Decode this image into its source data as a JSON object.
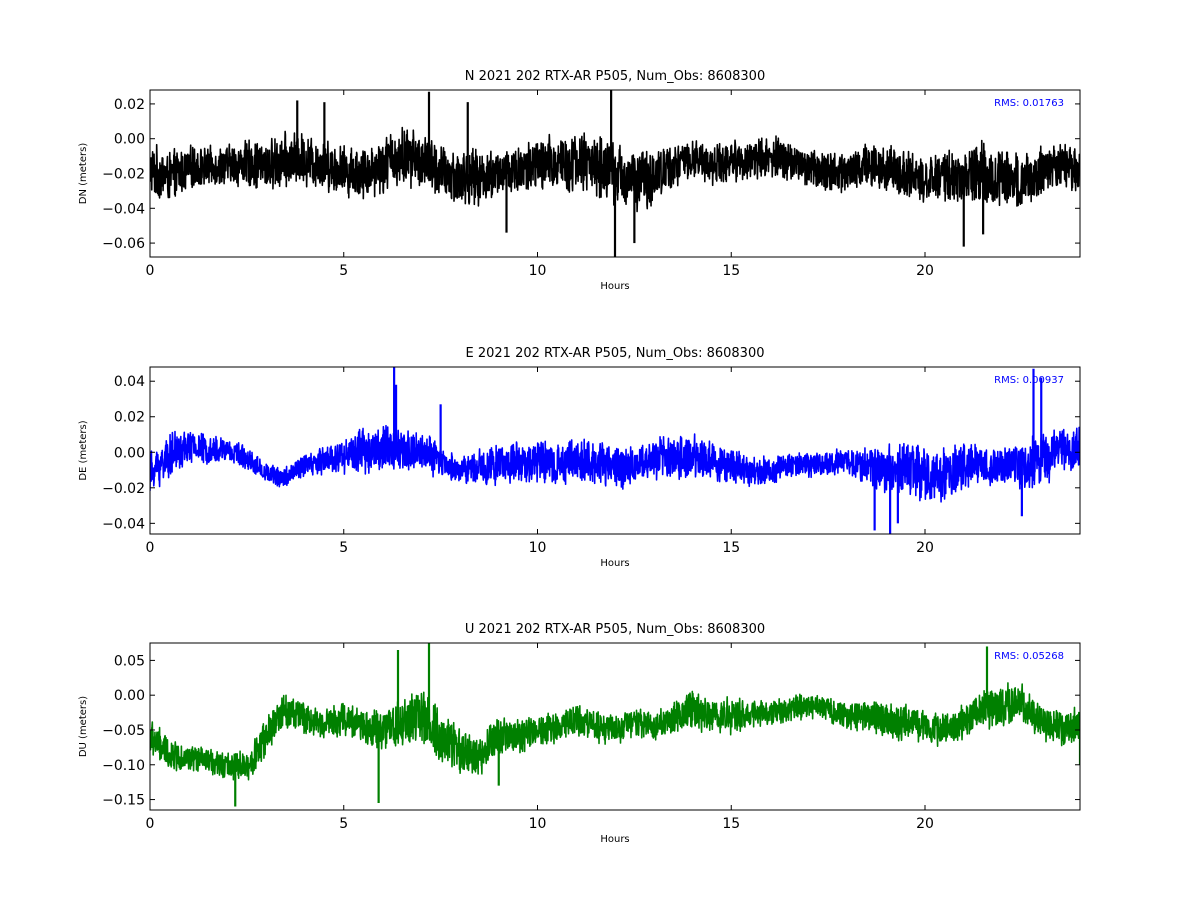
{
  "figure": {
    "background": "#ffffff"
  },
  "chart_data": [
    {
      "type": "line",
      "title": "N 2021 202 RTX-AR  P505, Num_Obs: 8608300",
      "xlabel": "Hours",
      "ylabel": "DN (meters)",
      "rms_label": "RMS:  0.01763",
      "rms_color": "#0000ff",
      "color": "#000000",
      "xlim": [
        0,
        24
      ],
      "ylim": [
        -0.068,
        0.028
      ],
      "xticks": [
        0,
        5,
        10,
        15,
        20
      ],
      "yticks": [
        0.02,
        0.0,
        -0.02,
        -0.04,
        -0.06
      ],
      "xtick_labels": [
        "0",
        "5",
        "10",
        "15",
        "20"
      ],
      "ytick_labels": [
        "0.02",
        "0.00",
        "−0.02",
        "−0.04",
        "−0.06"
      ],
      "grid": false,
      "series": [
        {
          "envelope_step_hours": 0.5,
          "baseline": [
            -0.018,
            -0.022,
            -0.017,
            -0.016,
            -0.015,
            -0.014,
            -0.016,
            -0.013,
            -0.012,
            -0.015,
            -0.018,
            -0.02,
            -0.015,
            -0.01,
            -0.012,
            -0.02,
            -0.023,
            -0.022,
            -0.02,
            -0.018,
            -0.016,
            -0.014,
            -0.013,
            -0.015,
            -0.02,
            -0.024,
            -0.022,
            -0.015,
            -0.012,
            -0.014,
            -0.013,
            -0.012,
            -0.011,
            -0.012,
            -0.017,
            -0.019,
            -0.018,
            -0.016,
            -0.017,
            -0.02,
            -0.023,
            -0.022,
            -0.021,
            -0.02,
            -0.022,
            -0.024,
            -0.018,
            -0.015,
            -0.016
          ],
          "amplitude": [
            0.017,
            0.016,
            0.014,
            0.012,
            0.013,
            0.015,
            0.016,
            0.018,
            0.017,
            0.016,
            0.016,
            0.017,
            0.018,
            0.019,
            0.018,
            0.018,
            0.019,
            0.017,
            0.016,
            0.017,
            0.018,
            0.019,
            0.019,
            0.02,
            0.02,
            0.02,
            0.018,
            0.014,
            0.012,
            0.013,
            0.013,
            0.013,
            0.014,
            0.013,
            0.012,
            0.013,
            0.014,
            0.015,
            0.014,
            0.014,
            0.014,
            0.015,
            0.018,
            0.02,
            0.02,
            0.017,
            0.016,
            0.016,
            0.016
          ],
          "spikes": [
            [
              3.8,
              0.022
            ],
            [
              4.5,
              0.021
            ],
            [
              7.2,
              0.027
            ],
            [
              8.2,
              0.021
            ],
            [
              9.2,
              -0.054
            ],
            [
              11.9,
              0.028
            ],
            [
              12.0,
              -0.068
            ],
            [
              12.5,
              -0.06
            ],
            [
              21.0,
              -0.062
            ],
            [
              21.5,
              -0.055
            ]
          ]
        }
      ]
    },
    {
      "type": "line",
      "title": "E 2021 202 RTX-AR  P505, Num_Obs: 8608300",
      "xlabel": "Hours",
      "ylabel": "DE (meters)",
      "rms_label": "RMS:  0.00937",
      "rms_color": "#0000ff",
      "color": "#0000ff",
      "xlim": [
        0,
        24
      ],
      "ylim": [
        -0.046,
        0.048
      ],
      "xticks": [
        0,
        5,
        10,
        15,
        20
      ],
      "yticks": [
        0.04,
        0.02,
        0.0,
        -0.02,
        -0.04
      ],
      "xtick_labels": [
        "0",
        "5",
        "10",
        "15",
        "20"
      ],
      "ytick_labels": [
        "0.04",
        "0.02",
        "0.00",
        "−0.02",
        "−0.04"
      ],
      "grid": false,
      "series": [
        {
          "envelope_step_hours": 0.5,
          "baseline": [
            -0.012,
            -0.002,
            0.003,
            0.002,
            0.001,
            -0.003,
            -0.012,
            -0.014,
            -0.008,
            -0.004,
            -0.002,
            0.001,
            0.003,
            0.0,
            0.001,
            -0.006,
            -0.01,
            -0.008,
            -0.007,
            -0.006,
            -0.005,
            -0.007,
            -0.005,
            -0.006,
            -0.008,
            -0.008,
            -0.004,
            -0.003,
            -0.003,
            -0.005,
            -0.008,
            -0.012,
            -0.01,
            -0.008,
            -0.007,
            -0.006,
            -0.005,
            -0.008,
            -0.009,
            -0.01,
            -0.012,
            -0.012,
            -0.008,
            -0.007,
            -0.008,
            -0.007,
            -0.004,
            0.0,
            0.002
          ],
          "amplitude": [
            0.013,
            0.014,
            0.011,
            0.009,
            0.008,
            0.007,
            0.006,
            0.007,
            0.008,
            0.009,
            0.011,
            0.014,
            0.016,
            0.013,
            0.012,
            0.011,
            0.009,
            0.011,
            0.013,
            0.013,
            0.012,
            0.013,
            0.014,
            0.015,
            0.014,
            0.012,
            0.013,
            0.014,
            0.014,
            0.012,
            0.011,
            0.01,
            0.009,
            0.008,
            0.008,
            0.007,
            0.008,
            0.012,
            0.015,
            0.018,
            0.019,
            0.017,
            0.014,
            0.012,
            0.013,
            0.015,
            0.017,
            0.015,
            0.014
          ],
          "spikes": [
            [
              6.3,
              0.048
            ],
            [
              6.35,
              0.038
            ],
            [
              7.5,
              0.027
            ],
            [
              18.7,
              -0.044
            ],
            [
              19.1,
              -0.046
            ],
            [
              19.3,
              -0.04
            ],
            [
              22.8,
              0.047
            ],
            [
              23.0,
              0.042
            ],
            [
              22.5,
              -0.036
            ]
          ]
        }
      ]
    },
    {
      "type": "line",
      "title": "U 2021 202 RTX-AR  P505, Num_Obs: 8608300",
      "xlabel": "Hours",
      "ylabel": "DU (meters)",
      "rms_label": "RMS:  0.05268",
      "rms_color": "#0000ff",
      "color": "#008000",
      "xlim": [
        0,
        24
      ],
      "ylim": [
        -0.165,
        0.075
      ],
      "xticks": [
        0,
        5,
        10,
        15,
        20
      ],
      "yticks": [
        0.05,
        0.0,
        -0.05,
        -0.1,
        -0.15
      ],
      "xtick_labels": [
        "0",
        "5",
        "10",
        "15",
        "20"
      ],
      "ytick_labels": [
        "0.05",
        "0.00",
        "−0.05",
        "−0.10",
        "−0.15"
      ],
      "grid": false,
      "series": [
        {
          "envelope_step_hours": 0.5,
          "baseline": [
            -0.06,
            -0.085,
            -0.09,
            -0.095,
            -0.1,
            -0.105,
            -0.06,
            -0.02,
            -0.035,
            -0.04,
            -0.035,
            -0.045,
            -0.05,
            -0.04,
            -0.03,
            -0.06,
            -0.08,
            -0.09,
            -0.055,
            -0.06,
            -0.05,
            -0.045,
            -0.035,
            -0.045,
            -0.05,
            -0.04,
            -0.045,
            -0.035,
            -0.02,
            -0.03,
            -0.03,
            -0.025,
            -0.025,
            -0.02,
            -0.015,
            -0.02,
            -0.03,
            -0.03,
            -0.035,
            -0.04,
            -0.045,
            -0.05,
            -0.04,
            -0.02,
            -0.015,
            -0.01,
            -0.04,
            -0.05,
            -0.045
          ],
          "amplitude": [
            0.03,
            0.025,
            0.02,
            0.02,
            0.022,
            0.025,
            0.03,
            0.03,
            0.027,
            0.025,
            0.027,
            0.03,
            0.035,
            0.042,
            0.042,
            0.04,
            0.035,
            0.03,
            0.03,
            0.028,
            0.025,
            0.025,
            0.025,
            0.025,
            0.025,
            0.025,
            0.025,
            0.024,
            0.03,
            0.03,
            0.028,
            0.024,
            0.02,
            0.02,
            0.02,
            0.02,
            0.022,
            0.025,
            0.03,
            0.03,
            0.028,
            0.026,
            0.028,
            0.03,
            0.035,
            0.03,
            0.028,
            0.03,
            0.03
          ],
          "spikes": [
            [
              6.4,
              0.065
            ],
            [
              7.2,
              0.075
            ],
            [
              5.9,
              -0.155
            ],
            [
              2.2,
              -0.16
            ],
            [
              21.6,
              0.07
            ],
            [
              9.0,
              -0.13
            ],
            [
              24.0,
              -0.1
            ]
          ]
        }
      ]
    }
  ]
}
